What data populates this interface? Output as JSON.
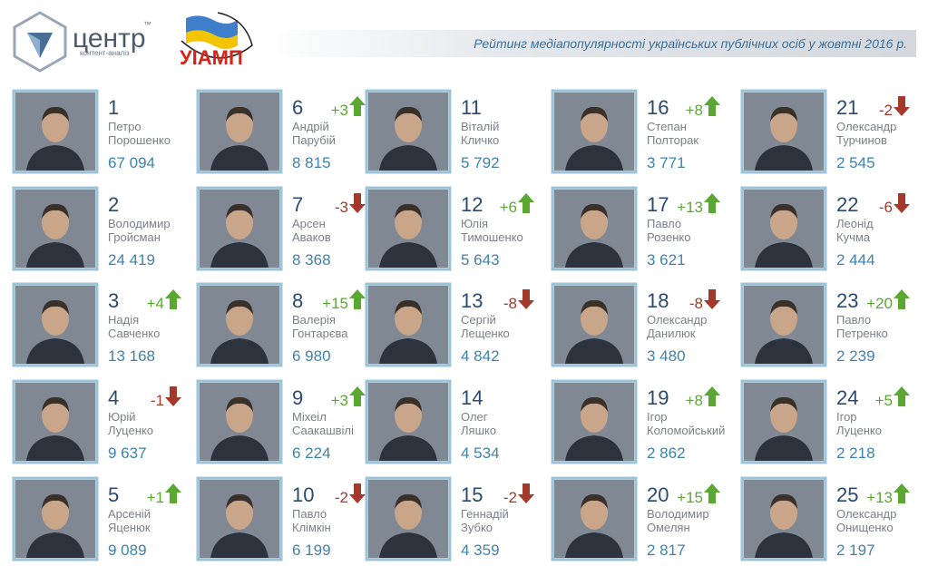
{
  "header": {
    "logo_main": "центр",
    "logo_sub": "контент-аналіз",
    "logo_tm": "™",
    "partner": "УІАМП",
    "title": "Рейтинг медіапопулярності українських публічних осіб у жовтні 2016 р."
  },
  "people": [
    {
      "rank": 1,
      "first": "Петро",
      "last": "Порошенко",
      "value": "67 094"
    },
    {
      "rank": 2,
      "first": "Володимир",
      "last": "Гройсман",
      "value": "24 419"
    },
    {
      "rank": 3,
      "first": "Надія",
      "last": "Савченко",
      "value": "13 168",
      "change": "+4"
    },
    {
      "rank": 4,
      "first": "Юрій",
      "last": "Луценко",
      "value": "9 637",
      "change": "-1"
    },
    {
      "rank": 5,
      "first": "Арсеній",
      "last": "Яценюк",
      "value": "9 089",
      "change": "+1"
    },
    {
      "rank": 6,
      "first": "Андрій",
      "last": "Парубій",
      "value": "8 815",
      "change": "+3"
    },
    {
      "rank": 7,
      "first": "Арсен",
      "last": "Аваков",
      "value": "8 368",
      "change": "-3"
    },
    {
      "rank": 8,
      "first": "Валерія",
      "last": "Гонтарєва",
      "value": "6 980",
      "change": "+15"
    },
    {
      "rank": 9,
      "first": "Міхеіл",
      "last": "Саакашвілі",
      "value": "6 224",
      "change": "+3"
    },
    {
      "rank": 10,
      "first": "Павло",
      "last": "Клімкін",
      "value": "6 199",
      "change": "-2"
    },
    {
      "rank": 11,
      "first": "Віталій",
      "last": "Кличко",
      "value": "5 792"
    },
    {
      "rank": 12,
      "first": "Юлія",
      "last": "Тимошенко",
      "value": "5 643",
      "change": "+6"
    },
    {
      "rank": 13,
      "first": "Сергій",
      "last": "Лещенко",
      "value": "4 842",
      "change": "-8"
    },
    {
      "rank": 14,
      "first": "Олег",
      "last": "Ляшко",
      "value": "4 534"
    },
    {
      "rank": 15,
      "first": "Геннадій",
      "last": "Зубко",
      "value": "4 359",
      "change": "-2"
    },
    {
      "rank": 16,
      "first": "Степан",
      "last": "Полторак",
      "value": "3 771",
      "change": "+8"
    },
    {
      "rank": 17,
      "first": "Павло",
      "last": "Розенко",
      "value": "3 621",
      "change": "+13"
    },
    {
      "rank": 18,
      "first": "Олександр",
      "last": "Данилюк",
      "value": "3 480",
      "change": "-8"
    },
    {
      "rank": 19,
      "first": "Ігор",
      "last": "Коломойський",
      "value": "2 862",
      "change": "+8"
    },
    {
      "rank": 20,
      "first": "Володимир",
      "last": "Омелян",
      "value": "2 817",
      "change": "+15"
    },
    {
      "rank": 21,
      "first": "Олександр",
      "last": "Турчинов",
      "value": "2 545",
      "change": "-2"
    },
    {
      "rank": 22,
      "first": "Леонід",
      "last": "Кучма",
      "value": "2 444",
      "change": "-6"
    },
    {
      "rank": 23,
      "first": "Павло",
      "last": "Петренко",
      "value": "2 239",
      "change": "+20"
    },
    {
      "rank": 24,
      "first": "Ігор",
      "last": "Луценко",
      "value": "2 218",
      "change": "+5"
    },
    {
      "rank": 25,
      "first": "Олександр",
      "last": "Онищенко",
      "value": "2 197",
      "change": "+13"
    }
  ]
}
